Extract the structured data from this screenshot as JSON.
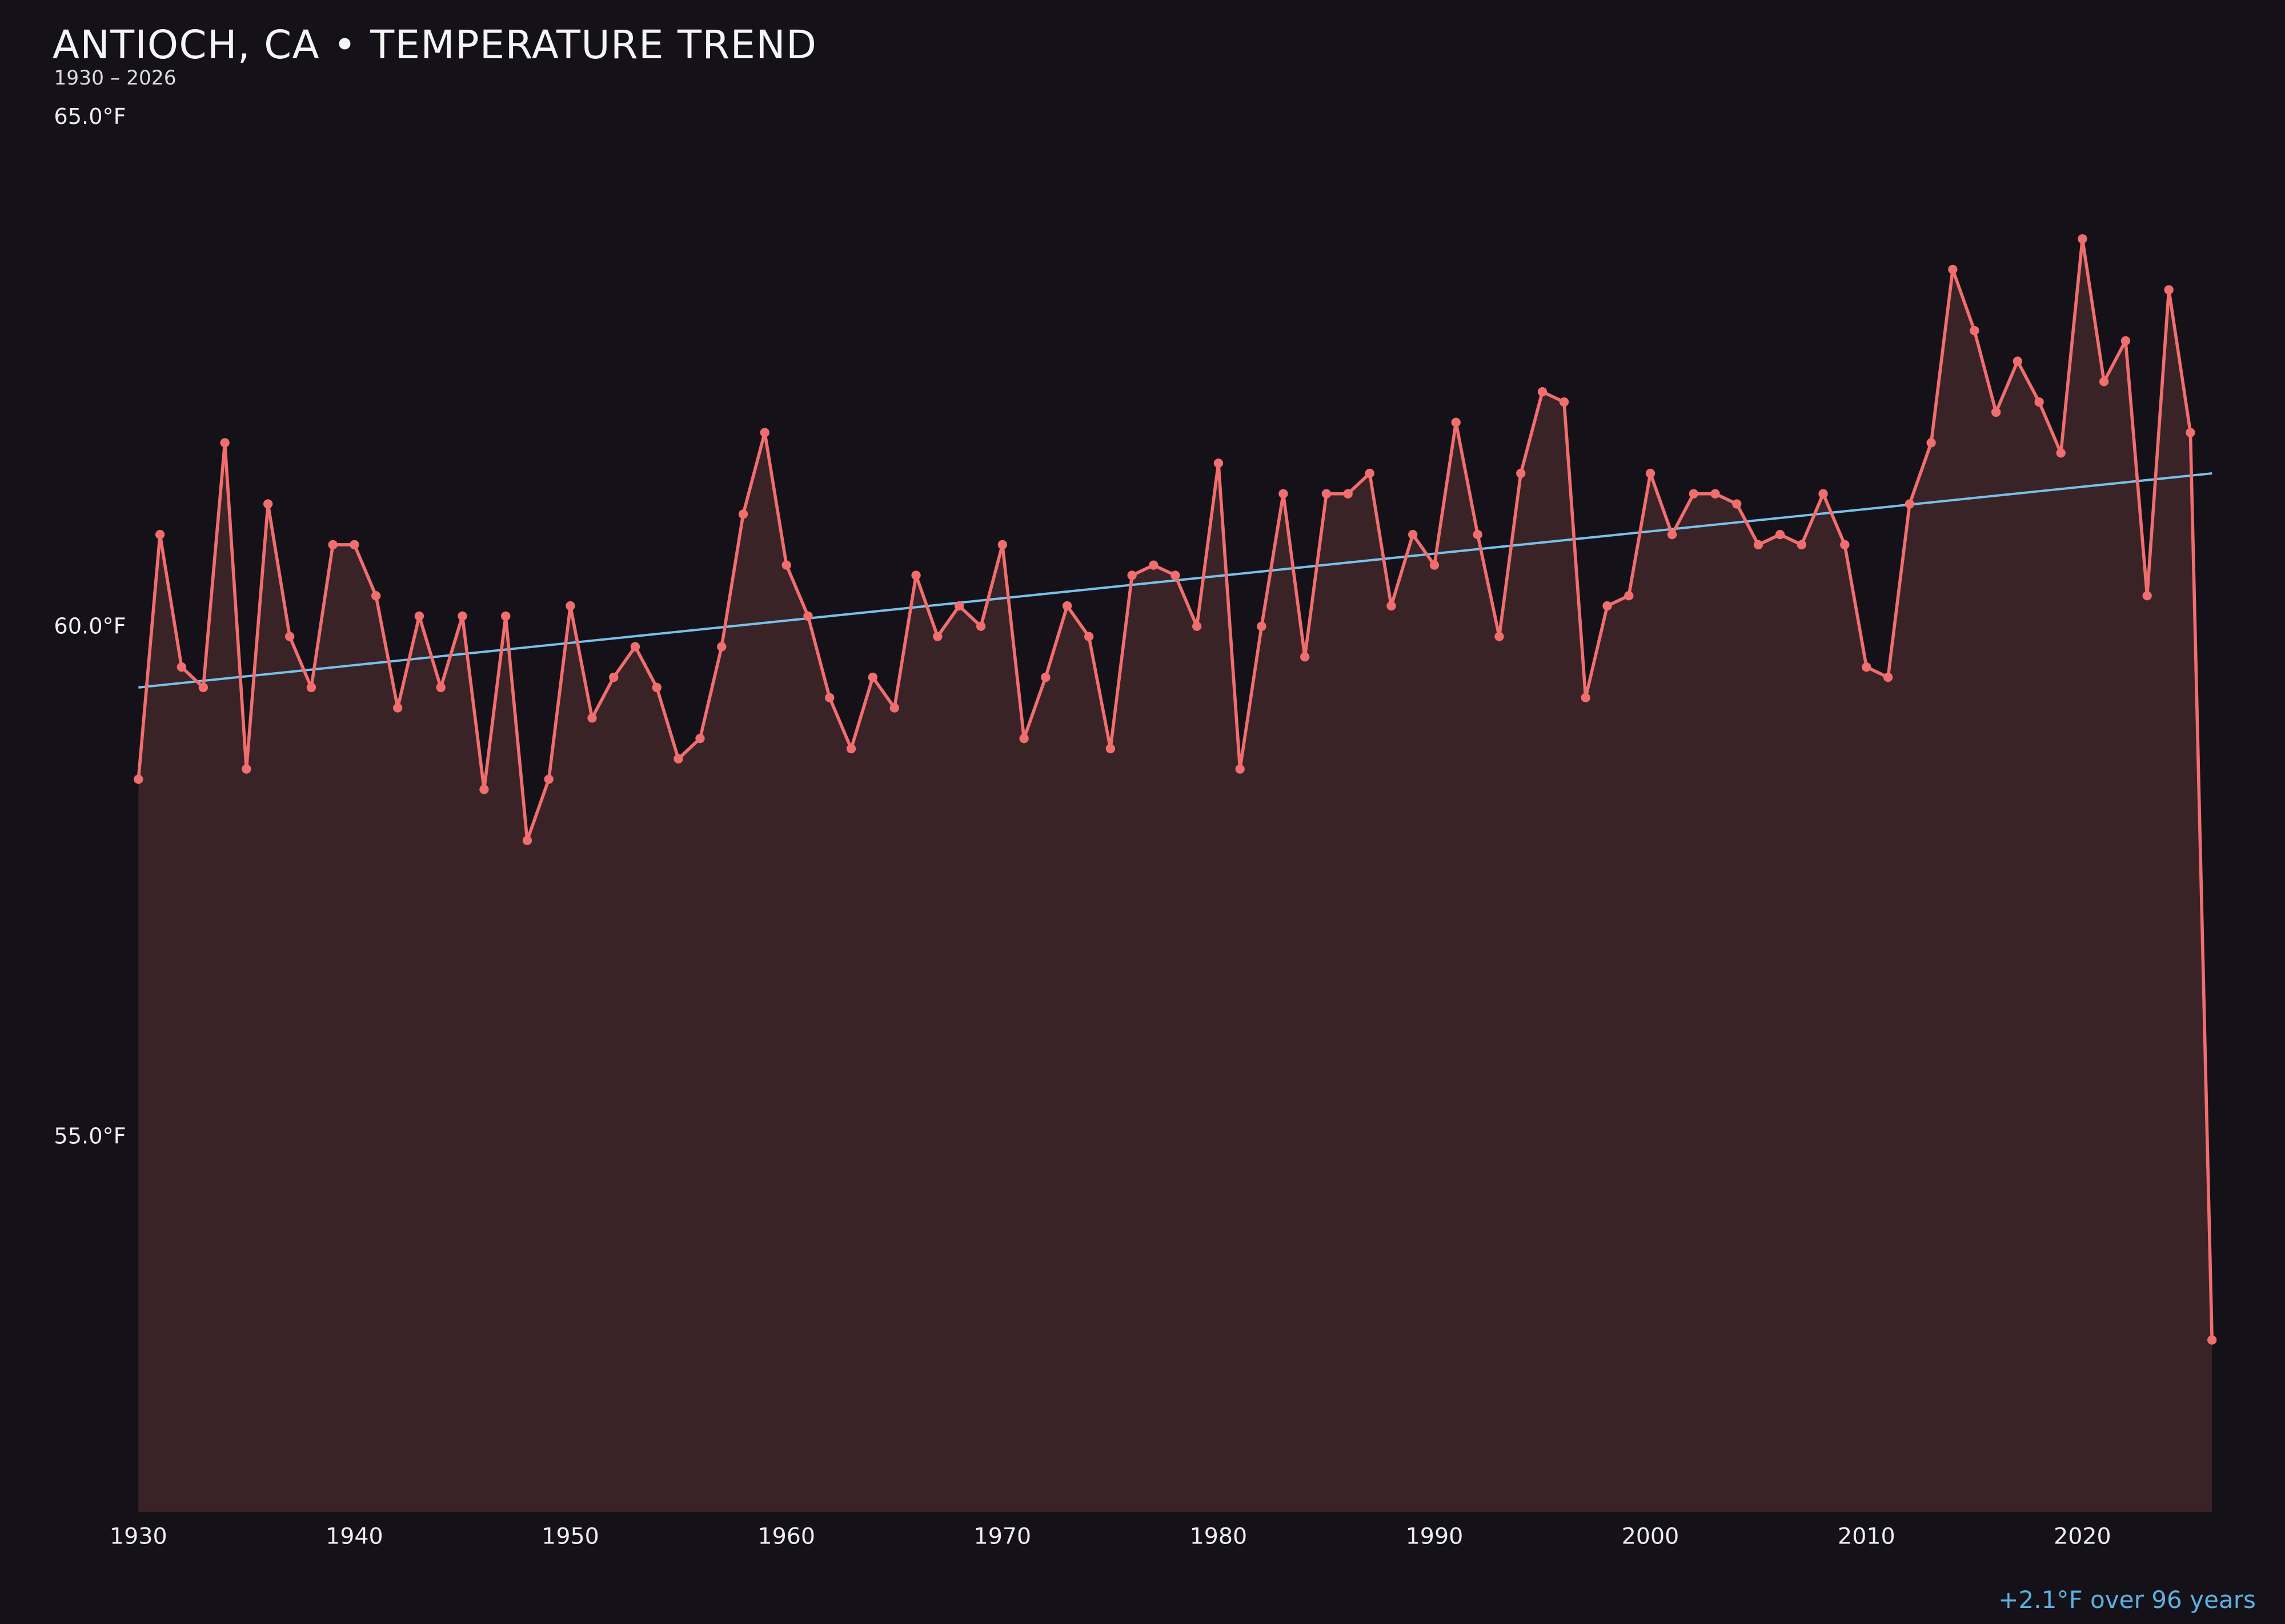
{
  "title": "ANTIOCH, CA • TEMPERATURE TREND",
  "subtitle": "1930 – 2026",
  "annotation": "+2.1°F over 96 years",
  "colors": {
    "background": "#141119",
    "area_fill": "#3a2327",
    "series_line": "#f06e6e",
    "trend_line": "#79c0ea",
    "annotation_text": "#5fb0e0",
    "title_text": "#f5f5f5",
    "subtitle_text": "#dddddd",
    "tick_text": "#eeeeee"
  },
  "chart_data": {
    "type": "line",
    "title": "ANTIOCH, CA • TEMPERATURE TREND",
    "subtitle": "1930 – 2026",
    "annotation": "+2.1°F over 96 years",
    "x_range": [
      1930,
      2026
    ],
    "ylim": [
      51.3,
      65.0
    ],
    "grid": false,
    "legend": "none",
    "y_ticks": [
      {
        "label": "65.0°F",
        "value": 65.0
      },
      {
        "label": "60.0°F",
        "value": 60.0
      },
      {
        "label": "55.0°F",
        "value": 55.0
      }
    ],
    "x_ticks": [
      {
        "label": "1930",
        "value": 1930
      },
      {
        "label": "1940",
        "value": 1940
      },
      {
        "label": "1950",
        "value": 1950
      },
      {
        "label": "1960",
        "value": 1960
      },
      {
        "label": "1970",
        "value": 1970
      },
      {
        "label": "1980",
        "value": 1980
      },
      {
        "label": "1990",
        "value": 1990
      },
      {
        "label": "2000",
        "value": 2000
      },
      {
        "label": "2010",
        "value": 2010
      },
      {
        "label": "2020",
        "value": 2020
      }
    ],
    "series": [
      {
        "name": "annual-mean-temperature",
        "x": [
          1930,
          1931,
          1932,
          1933,
          1934,
          1935,
          1936,
          1937,
          1938,
          1939,
          1940,
          1941,
          1942,
          1943,
          1944,
          1945,
          1946,
          1947,
          1948,
          1949,
          1950,
          1951,
          1952,
          1953,
          1954,
          1955,
          1956,
          1957,
          1958,
          1959,
          1960,
          1961,
          1962,
          1963,
          1964,
          1965,
          1966,
          1967,
          1968,
          1969,
          1970,
          1971,
          1972,
          1973,
          1974,
          1975,
          1976,
          1977,
          1978,
          1979,
          1980,
          1981,
          1982,
          1983,
          1984,
          1985,
          1986,
          1987,
          1988,
          1989,
          1990,
          1991,
          1992,
          1993,
          1994,
          1995,
          1996,
          1997,
          1998,
          1999,
          2000,
          2001,
          2002,
          2003,
          2004,
          2005,
          2006,
          2007,
          2008,
          2009,
          2010,
          2011,
          2012,
          2013,
          2014,
          2015,
          2016,
          2017,
          2018,
          2019,
          2020,
          2021,
          2022,
          2023,
          2024,
          2025,
          2026
        ],
        "y": [
          58.5,
          60.9,
          59.6,
          59.4,
          61.8,
          58.6,
          61.2,
          59.9,
          59.4,
          60.8,
          60.8,
          60.3,
          59.2,
          60.1,
          59.4,
          60.1,
          58.4,
          60.1,
          57.9,
          58.5,
          60.2,
          59.1,
          59.5,
          59.8,
          59.4,
          58.7,
          58.9,
          59.8,
          61.1,
          61.9,
          60.6,
          60.1,
          59.3,
          58.8,
          59.5,
          59.2,
          60.5,
          59.9,
          60.2,
          60.0,
          60.8,
          58.9,
          59.5,
          60.2,
          59.9,
          58.8,
          60.5,
          60.6,
          60.5,
          60.0,
          61.6,
          58.6,
          60.0,
          61.3,
          59.7,
          61.3,
          61.3,
          61.5,
          60.2,
          60.9,
          60.6,
          62.0,
          60.9,
          59.9,
          61.5,
          62.3,
          62.2,
          59.3,
          60.2,
          60.3,
          61.5,
          60.9,
          61.3,
          61.3,
          61.2,
          60.8,
          60.9,
          60.8,
          61.3,
          60.8,
          59.6,
          59.5,
          61.2,
          61.8,
          63.5,
          62.9,
          62.1,
          62.6,
          62.2,
          61.7,
          63.8,
          62.4,
          62.8,
          60.3,
          63.3,
          61.9,
          53.0
        ]
      }
    ],
    "trend": {
      "name": "linear-trend",
      "x": [
        1930,
        2026
      ],
      "y": [
        59.4,
        61.5
      ],
      "delta_label": "+2.1°F over 96 years"
    }
  }
}
